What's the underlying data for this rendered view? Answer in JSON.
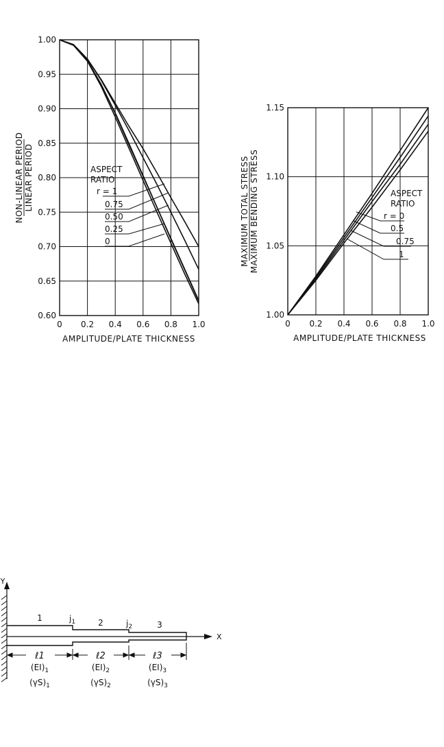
{
  "chart_data": [
    {
      "type": "line",
      "xlabel": "AMPLITUDE/PLATE THICKNESS",
      "ylabel_top": "NON-LINEAR PERIOD",
      "ylabel_bottom": "LINEAR PERIOD",
      "xlim": [
        0,
        1.0
      ],
      "ylim": [
        0.6,
        1.0
      ],
      "x_ticks": [
        "0",
        "0.2",
        "0.4",
        "0.6",
        "0.8",
        "1.0"
      ],
      "y_ticks": [
        "0.60",
        "0.65",
        "0.70",
        "0.75",
        "0.80",
        "0.85",
        "0.90",
        "0.95",
        "1.00"
      ],
      "grid": true,
      "legend_title": [
        "ASPECT",
        "RATIO"
      ],
      "series": [
        {
          "name": "r = 1",
          "x": [
            0,
            0.1,
            0.2,
            0.3,
            0.4,
            0.5,
            0.6,
            0.7,
            0.8,
            0.9,
            1.0
          ],
          "values": [
            1.0,
            0.993,
            0.972,
            0.942,
            0.908,
            0.874,
            0.842,
            0.807,
            0.771,
            0.736,
            0.7
          ]
        },
        {
          "name": "0.75",
          "x": [
            0,
            0.1,
            0.2,
            0.3,
            0.4,
            0.5,
            0.6,
            0.7,
            0.8,
            0.9,
            1.0
          ],
          "values": [
            1.0,
            0.993,
            0.972,
            0.941,
            0.905,
            0.868,
            0.829,
            0.79,
            0.75,
            0.709,
            0.667
          ]
        },
        {
          "name": "0.50",
          "x": [
            0,
            0.1,
            0.2,
            0.3,
            0.4,
            0.5,
            0.6,
            0.7,
            0.8,
            0.9,
            1.0
          ],
          "values": [
            1.0,
            0.992,
            0.97,
            0.935,
            0.893,
            0.847,
            0.802,
            0.757,
            0.712,
            0.667,
            0.622
          ]
        },
        {
          "name": "0.25",
          "x": [
            0,
            0.1,
            0.2,
            0.3,
            0.4,
            0.5,
            0.6,
            0.7,
            0.8,
            0.9,
            1.0
          ],
          "values": [
            1.0,
            0.992,
            0.969,
            0.932,
            0.888,
            0.842,
            0.796,
            0.75,
            0.705,
            0.66,
            0.617
          ]
        },
        {
          "name": "0",
          "x": [
            0,
            0.1,
            0.2,
            0.3,
            0.4,
            0.5,
            0.6,
            0.7,
            0.8,
            0.9,
            1.0
          ],
          "values": [
            1.0,
            0.992,
            0.969,
            0.934,
            0.894,
            0.849,
            0.803,
            0.757,
            0.711,
            0.666,
            0.621
          ]
        }
      ]
    },
    {
      "type": "line",
      "xlabel": "AMPLITUDE/PLATE THICKNESS",
      "ylabel_top": "MAXIMUM TOTAL STRESS",
      "ylabel_bottom": "MAXIMUM BENDING STRESS",
      "xlim": [
        0,
        1.0
      ],
      "ylim": [
        1.0,
        1.15
      ],
      "x_ticks": [
        "0",
        "0.2",
        "0.4",
        "0.6",
        "0.8",
        "1.0"
      ],
      "y_ticks": [
        "1.00",
        "1.05",
        "1.10",
        "1.15"
      ],
      "grid": true,
      "legend_title": [
        "ASPECT",
        "RATIO"
      ],
      "series": [
        {
          "name": "r = 0",
          "x": [
            0,
            0.2,
            0.4,
            0.6,
            0.8,
            1.0
          ],
          "values": [
            1.0,
            1.028,
            1.058,
            1.088,
            1.119,
            1.15
          ]
        },
        {
          "name": "0.5",
          "x": [
            0,
            0.2,
            0.4,
            0.6,
            0.8,
            1.0
          ],
          "values": [
            1.0,
            1.027,
            1.056,
            1.085,
            1.114,
            1.144
          ]
        },
        {
          "name": "0.75",
          "x": [
            0,
            0.2,
            0.4,
            0.6,
            0.8,
            1.0
          ],
          "values": [
            1.0,
            1.026,
            1.054,
            1.082,
            1.109,
            1.138
          ]
        },
        {
          "name": "1",
          "x": [
            0,
            0.2,
            0.4,
            0.6,
            0.8,
            1.0
          ],
          "values": [
            1.0,
            1.025,
            1.052,
            1.078,
            1.105,
            1.133
          ]
        }
      ]
    }
  ],
  "diagram": {
    "y_axis_label": "Y",
    "x_axis_label": "X",
    "segment_numbers": [
      "1",
      "2",
      "3"
    ],
    "junctions": [
      {
        "main": "j",
        "sub": "1"
      },
      {
        "main": "j",
        "sub": "2"
      }
    ],
    "lengths": [
      {
        "main": "ℓ",
        "sub": "1"
      },
      {
        "main": "ℓ",
        "sub": "2"
      },
      {
        "main": "ℓ",
        "sub": "3"
      }
    ],
    "stiffness": [
      {
        "main": "(EI)",
        "sub": "1"
      },
      {
        "main": "(EI)",
        "sub": "2"
      },
      {
        "main": "(EI)",
        "sub": "3"
      }
    ],
    "density": [
      {
        "main": "(γS)",
        "sub": "1"
      },
      {
        "main": "(γS)",
        "sub": "2"
      },
      {
        "main": "(γS)",
        "sub": "3"
      }
    ]
  }
}
